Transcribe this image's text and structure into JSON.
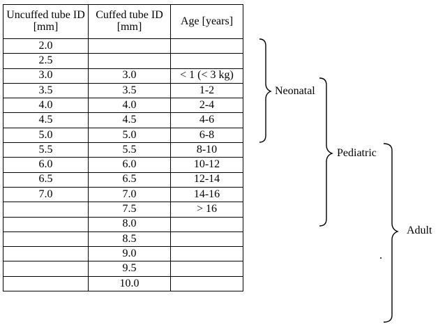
{
  "table": {
    "headers": [
      "Uncuffed tube ID [mm]",
      "Cuffed tube ID [mm]",
      "Age [years]"
    ],
    "rows": [
      [
        "2.0",
        "",
        ""
      ],
      [
        "2.5",
        "",
        ""
      ],
      [
        "3.0",
        "3.0",
        "< 1 (< 3 kg)"
      ],
      [
        "3.5",
        "3.5",
        "1-2"
      ],
      [
        "4.0",
        "4.0",
        "2-4"
      ],
      [
        "4.5",
        "4.5",
        "4-6"
      ],
      [
        "5.0",
        "5.0",
        "6-8"
      ],
      [
        "5.5",
        "5.5",
        "8-10"
      ],
      [
        "6.0",
        "6.0",
        "10-12"
      ],
      [
        "6.5",
        "6.5",
        "12-14"
      ],
      [
        "7.0",
        "7.0",
        "14-16"
      ],
      [
        "",
        "7.5",
        "> 16"
      ],
      [
        "",
        "8.0",
        ""
      ],
      [
        "",
        "8.5",
        ""
      ],
      [
        "",
        "9.0",
        ""
      ],
      [
        "",
        "9.5",
        ""
      ],
      [
        "",
        "10.0",
        ""
      ]
    ]
  },
  "groups": {
    "neonatal": "Neonatal",
    "pediatric": "Pediatric",
    "adult": "Adult"
  }
}
